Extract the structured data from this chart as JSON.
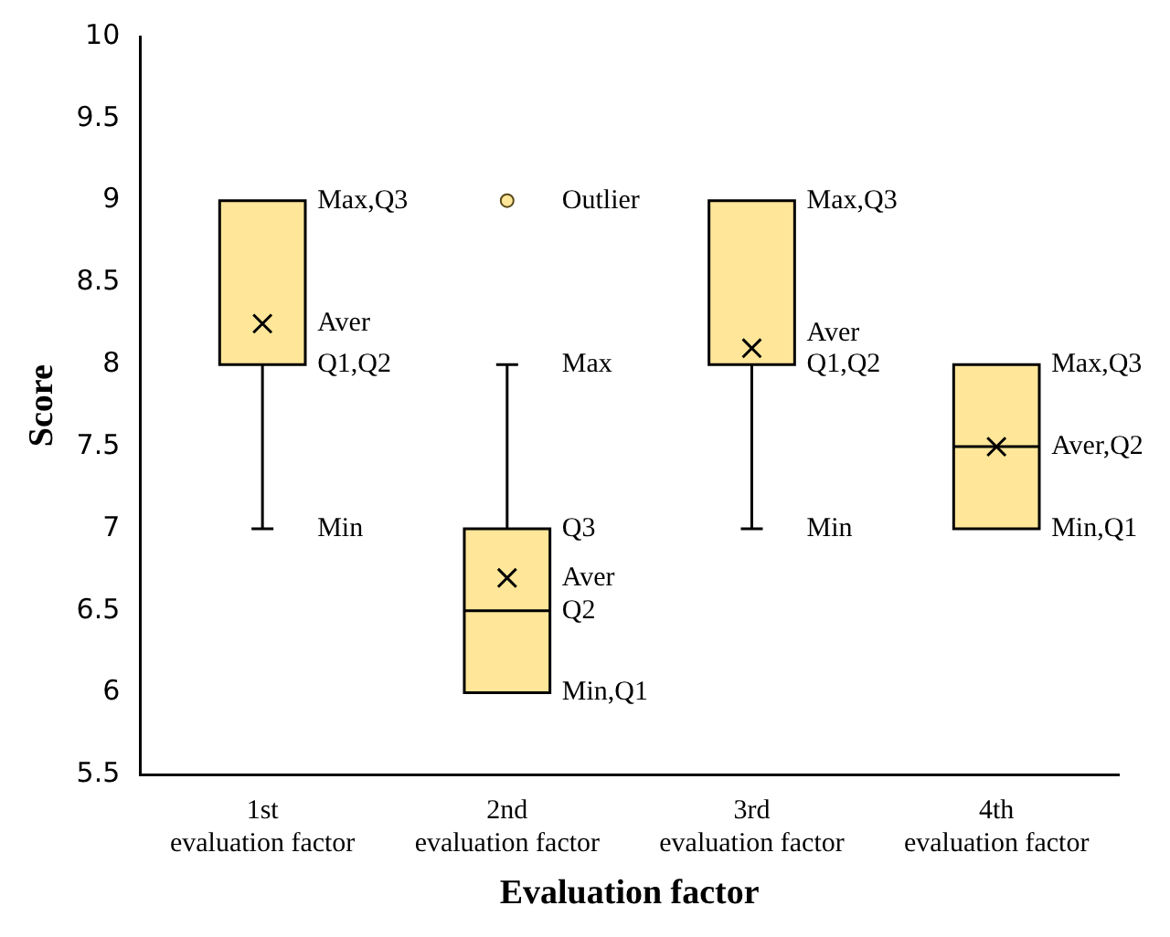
{
  "chart_data": {
    "type": "box",
    "xlabel": "Evaluation factor",
    "ylabel": "Score",
    "categories": [
      "1st\nevaluation factor",
      "2nd\nevaluation factor",
      "3rd\nevaluation factor",
      "4th\nevaluation factor"
    ],
    "ylim": [
      5.5,
      10
    ],
    "yticks": [
      5.5,
      6,
      6.5,
      7,
      7.5,
      8,
      8.5,
      9,
      9.5,
      10
    ],
    "series": [
      {
        "color": "#ffe699",
        "boxes": [
          {
            "low": 7,
            "q1": 8,
            "median": 8,
            "q3": 9,
            "high": 9,
            "mean": 8.25
          },
          {
            "low": 6,
            "q1": 6,
            "median": 6.5,
            "q3": 7,
            "high": 8,
            "mean": 6.7,
            "outliers": [
              9
            ]
          },
          {
            "low": 7,
            "q1": 8,
            "median": 8,
            "q3": 9,
            "high": 9,
            "mean": 8.1
          },
          {
            "low": 7,
            "q1": 7,
            "median": 7.5,
            "q3": 8,
            "high": 8,
            "mean": 7.5
          }
        ]
      }
    ],
    "annotations": [
      {
        "text": "Max,Q3",
        "x": "1st\nevaluation factor",
        "y": 9
      },
      "Aver",
      {
        "text": "Q1,Q2",
        "x": "1st\nevaluation factor",
        "y": 8
      },
      {
        "text": "Min",
        "x": "1st\nevaluation factor",
        "y": 7
      },
      "Outlier",
      {
        "text": "Max",
        "x": "2nd\nevaluation factor",
        "y": 8
      },
      {
        "text": "Q3",
        "x": "2nd\nevaluation factor",
        "y": 7
      },
      "Aver",
      {
        "text": "Q2",
        "x": "2nd\nevaluation factor",
        "y": 6.5
      },
      {
        "text": "Min,Q1",
        "x": "2nd\nevaluation factor",
        "y": 6
      },
      {
        "text": "Max,Q3",
        "x": "3rd\nevaluation factor",
        "y": 9
      },
      "Aver",
      {
        "text": "Q1,Q2",
        "x": "3rd\nevaluation factor",
        "y": 8
      },
      {
        "text": "Min",
        "x": "3rd\nevaluation factor",
        "y": 7
      },
      {
        "text": "Max,Q3",
        "x": "4th\nevaluation factor",
        "y": 8
      },
      {
        "text": "Aver,Q2",
        "x": "4th\nevaluation factor",
        "y": 7.5
      },
      {
        "text": "Min,Q1",
        "x": "4th\nevaluation factor",
        "y": 7
      }
    ]
  }
}
